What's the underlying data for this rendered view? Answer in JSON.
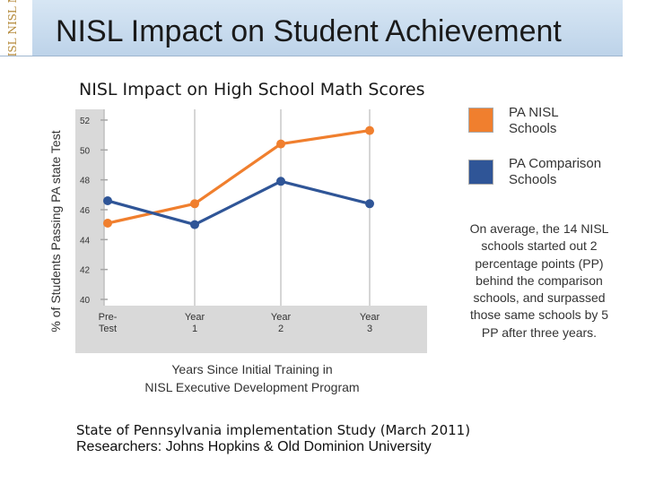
{
  "header": {
    "title": "NISL Impact on Student Achievement",
    "logo_text": "NISL NISL NI"
  },
  "chart_data": {
    "type": "line",
    "title": "NISL Impact on High School Math Scores",
    "ylabel": "% of Students Passing PA state Test",
    "xlabel": "Years Since Initial Training in NISL Executive Development Program",
    "ylim": [
      39,
      53
    ],
    "yticks": [
      52,
      50,
      48,
      46,
      44,
      42,
      40
    ],
    "categories": [
      "Pre-Test",
      "Year 1",
      "Year 2",
      "Year 3"
    ],
    "series": [
      {
        "name": "PA NISL Schools",
        "color": "#f07f2e",
        "values": [
          45.1,
          46.4,
          50.4,
          51.3
        ]
      },
      {
        "name": "PA Comparison Schools",
        "color": "#2f5597",
        "values": [
          46.6,
          45.0,
          47.9,
          46.4
        ]
      }
    ]
  },
  "x_title": {
    "line1": "Years Since Initial Training in",
    "line2": "NISL Executive Development Program"
  },
  "legend": [
    {
      "line1": "PA NISL",
      "line2": "Schools",
      "color": "#f07f2e"
    },
    {
      "line1": "PA Comparison",
      "line2": "Schools",
      "color": "#2f5597"
    }
  ],
  "note": "On average, the 14 NISL schools started out 2 percentage points (PP) behind the comparison schools, and surpassed those same schools by 5 PP after three years.",
  "footer": {
    "study": "State of Pennsylvania implementation Study (March 2011)",
    "researchers": "Researchers:   Johns Hopkins & Old Dominion University"
  }
}
